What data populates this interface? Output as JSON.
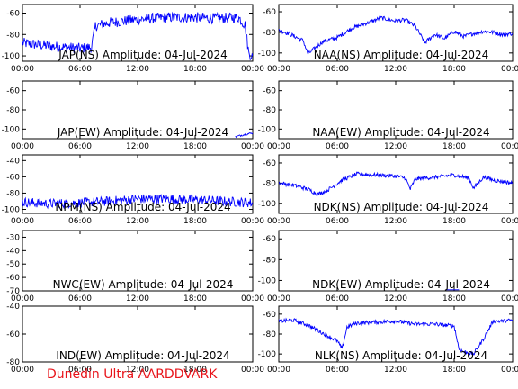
{
  "footer": {
    "text": "Dunedin Ultra AARDDVARK"
  },
  "colors": {
    "trace": "#0000ff",
    "axis": "#000000",
    "footer": "#e8141a",
    "background": "#ffffff"
  },
  "chart_data": [
    {
      "type": "line",
      "title": "JAP(NS) Amplitude: 04-Jul-2024",
      "x_ticks": [
        "00:00",
        "06:00",
        "12:00",
        "18:00",
        "00:00"
      ],
      "xlim": [
        0,
        24
      ],
      "y_ticks": [
        -100,
        -80,
        -60
      ],
      "ylim": [
        -105,
        -52
      ],
      "series": [
        {
          "x": [
            0,
            3,
            6,
            7.2,
            7.6,
            9,
            12,
            15,
            18,
            20,
            22.5,
            23.2,
            23.6,
            24
          ],
          "y": [
            -88,
            -91,
            -93,
            -92,
            -72,
            -69,
            -66,
            -64,
            -64,
            -65,
            -64,
            -71,
            -98,
            -100
          ],
          "noise": 5
        }
      ]
    },
    {
      "type": "line",
      "title": "NAA(NS) Amplitude: 04-Jul-2024",
      "x_ticks": [
        "00:00",
        "06:00",
        "12:00",
        "18:00",
        "00:00"
      ],
      "xlim": [
        0,
        24
      ],
      "y_ticks": [
        -100,
        -80,
        -60
      ],
      "ylim": [
        -108,
        -53
      ],
      "series": [
        {
          "x": [
            0,
            1,
            2.5,
            3,
            4.5,
            6,
            7.5,
            9,
            10.5,
            12,
            13,
            14,
            15,
            16,
            17,
            18,
            19,
            20,
            21,
            22,
            23,
            24
          ],
          "y": [
            -78,
            -81,
            -88,
            -101,
            -89,
            -85,
            -76,
            -71,
            -66,
            -69,
            -68,
            -74,
            -90,
            -82,
            -86,
            -79,
            -84,
            -81,
            -79,
            -80,
            -82,
            -81
          ],
          "noise": 2
        }
      ]
    },
    {
      "type": "line",
      "title": "JAP(EW) Amplitude: 04-Jul-2024",
      "x_ticks": [
        "00:00",
        "06:00",
        "12:00",
        "18:00",
        "00:00"
      ],
      "xlim": [
        0,
        24
      ],
      "y_ticks": [
        -100,
        -80,
        -60
      ],
      "ylim": [
        -110,
        -50
      ],
      "series": [
        {
          "x": [
            22.2,
            23,
            24
          ],
          "y": [
            -108,
            -106,
            -104
          ],
          "noise": 1
        }
      ]
    },
    {
      "type": "line",
      "title": "NAA(EW) Amplitude: 04-Jul-2024",
      "x_ticks": [
        "00:00",
        "06:00",
        "12:00",
        "18:00",
        "00:00"
      ],
      "xlim": [
        0,
        24
      ],
      "y_ticks": [
        -100,
        -80,
        -60
      ],
      "ylim": [
        -110,
        -50
      ],
      "series": []
    },
    {
      "type": "line",
      "title": "NPM(NS) Amplitude: 04-Jul-2024",
      "x_ticks": [
        "00:00",
        "06:00",
        "12:00",
        "18:00",
        "00:00"
      ],
      "xlim": [
        0,
        24
      ],
      "y_ticks": [
        -100,
        -80,
        -60,
        -40
      ],
      "ylim": [
        -105,
        -33
      ],
      "series": [
        {
          "x": [
            0,
            3,
            6,
            9,
            12,
            15,
            18,
            21,
            24
          ],
          "y": [
            -91,
            -93,
            -92,
            -90,
            -87,
            -87,
            -88,
            -90,
            -92
          ],
          "noise": 6
        }
      ]
    },
    {
      "type": "line",
      "title": "NDK(NS) Amplitude: 04-Jul-2024",
      "x_ticks": [
        "00:00",
        "06:00",
        "12:00",
        "18:00",
        "00:00"
      ],
      "xlim": [
        0,
        24
      ],
      "y_ticks": [
        -100,
        -80,
        -60
      ],
      "ylim": [
        -110,
        -52
      ],
      "series": [
        {
          "x": [
            0,
            1.5,
            3,
            4,
            5,
            6.5,
            8,
            10,
            12,
            13,
            13.5,
            14,
            16,
            18,
            19.5,
            20,
            21,
            22,
            24
          ],
          "y": [
            -80,
            -82,
            -86,
            -91,
            -87,
            -77,
            -71,
            -72,
            -73,
            -75,
            -86,
            -76,
            -74,
            -72,
            -75,
            -85,
            -74,
            -77,
            -80
          ],
          "noise": 2
        }
      ]
    },
    {
      "type": "line",
      "title": "NWC(EW) Amplitude: 04-Jul-2024",
      "x_ticks": [
        "00:00",
        "06:00",
        "12:00",
        "18:00",
        "00:00"
      ],
      "xlim": [
        0,
        24
      ],
      "y_ticks": [
        -70,
        -60,
        -50,
        -40,
        -30
      ],
      "ylim": [
        -70,
        -25
      ],
      "series": []
    },
    {
      "type": "line",
      "title": "NDK(EW) Amplitude: 04-Jul-2024",
      "x_ticks": [
        "00:00",
        "06:00",
        "12:00",
        "18:00",
        "00:00"
      ],
      "xlim": [
        0,
        24
      ],
      "y_ticks": [
        -100,
        -80,
        -60
      ],
      "ylim": [
        -110,
        -52
      ],
      "series": [
        {
          "x": [
            17.2,
            18.5
          ],
          "y": [
            -109,
            -109
          ],
          "noise": 0
        }
      ]
    },
    {
      "type": "line",
      "title": "IND(EW) Amplitude: 04-Jul-2024",
      "x_ticks": [
        "00:00",
        "06:00",
        "12:00",
        "18:00",
        "00:00"
      ],
      "xlim": [
        0,
        24
      ],
      "y_ticks": [
        -80,
        -60,
        -40
      ],
      "ylim": [
        -80,
        -40
      ],
      "series": []
    },
    {
      "type": "line",
      "title": "NLK(NS) Amplitude: 04-Jul-2024",
      "x_ticks": [
        "00:00",
        "06:00",
        "12:00",
        "18:00",
        "00:00"
      ],
      "xlim": [
        0,
        24
      ],
      "y_ticks": [
        -100,
        -80,
        -60
      ],
      "ylim": [
        -108,
        -52
      ],
      "series": [
        {
          "x": [
            0,
            1.5,
            3,
            4.5,
            6,
            6.5,
            7,
            8,
            10,
            12,
            14,
            16,
            18,
            18.5,
            19,
            20,
            21,
            22,
            23,
            24
          ],
          "y": [
            -67,
            -66,
            -71,
            -79,
            -87,
            -95,
            -73,
            -69,
            -68,
            -67,
            -70,
            -70,
            -72,
            -95,
            -98,
            -100,
            -85,
            -67,
            -67,
            -66
          ],
          "noise": 2
        }
      ]
    }
  ]
}
